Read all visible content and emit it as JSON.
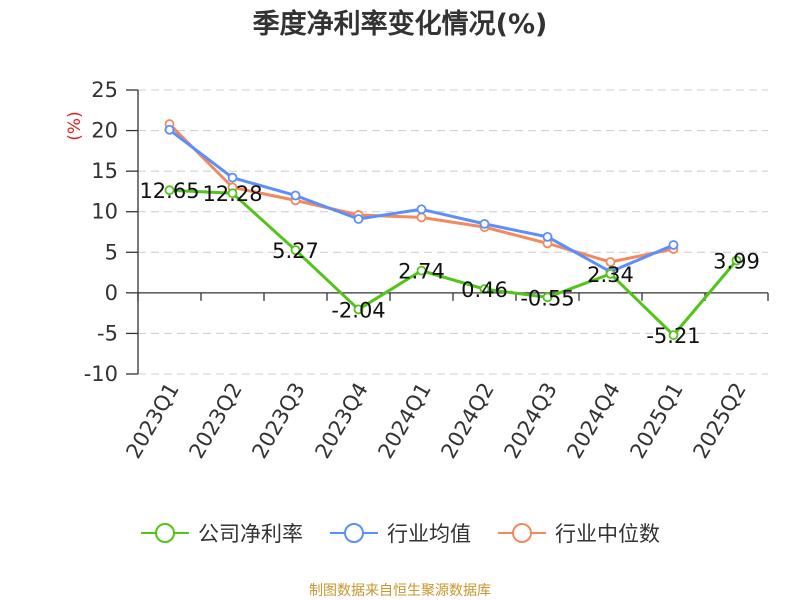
{
  "chart_data": {
    "type": "line",
    "title": "季度净利率变化情况(%)",
    "ylabel": "(%)",
    "xlabel": "",
    "categories": [
      "2023Q1",
      "2023Q2",
      "2023Q3",
      "2023Q4",
      "2024Q1",
      "2024Q2",
      "2024Q3",
      "2024Q4",
      "2025Q1",
      "2025Q2"
    ],
    "ylim": [
      -10,
      25
    ],
    "yticks": [
      "25",
      "20",
      "15",
      "10",
      "5",
      "0",
      "-5",
      "-10"
    ],
    "grid": true,
    "legend_position": "bottom",
    "series": [
      {
        "name": "公司净利率",
        "color": "#52c41a",
        "values": [
          12.65,
          12.28,
          5.27,
          -2.04,
          2.74,
          0.46,
          -0.55,
          2.34,
          -5.21,
          3.99
        ],
        "labels": [
          "12.65",
          "12.28",
          "5.27",
          "-2.04",
          "2.74",
          "0.46",
          "-0.55",
          "2.34",
          "-5.21",
          "3.99"
        ]
      },
      {
        "name": "行业均值",
        "color": "#5b8ff9",
        "values": [
          20.1,
          14.2,
          12.0,
          9.1,
          10.3,
          8.5,
          6.9,
          2.6,
          5.9,
          null
        ]
      },
      {
        "name": "行业中位数",
        "color": "#f4895f",
        "values": [
          20.8,
          13.0,
          11.4,
          9.6,
          9.3,
          8.1,
          6.1,
          3.8,
          5.4,
          null
        ]
      }
    ]
  },
  "source": {
    "text": "制图数据来自恒生聚源数据库",
    "color": "#c8962e"
  },
  "colors": {
    "axis": "#333333",
    "grid": "#cccccc",
    "ylabel": "#dd2222"
  }
}
